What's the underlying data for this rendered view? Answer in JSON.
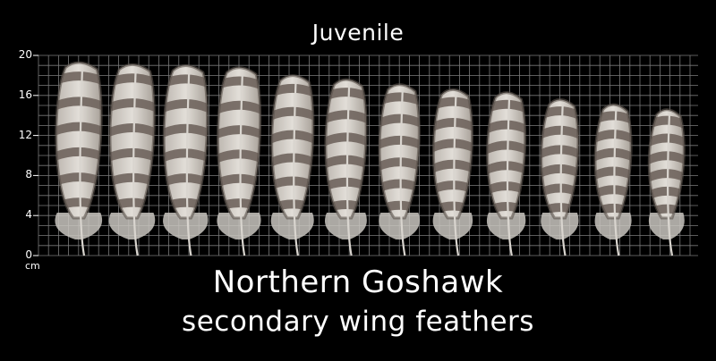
{
  "header": {
    "title": "Juvenile"
  },
  "caption": {
    "line1": "Northern Goshawk",
    "line2": "secondary wing feathers"
  },
  "scale": {
    "unit": "cm",
    "ticks": [
      "0",
      "4",
      "8",
      "12",
      "16",
      "20"
    ]
  },
  "colors": {
    "background": "#000000",
    "grid": "#7a7a7a",
    "feather_light": "#d9d5cf",
    "feather_dark": "#6f645d"
  },
  "feathers": [
    {
      "name": "feather-1",
      "length_cm": 19.5
    },
    {
      "name": "feather-2",
      "length_cm": 19.3
    },
    {
      "name": "feather-3",
      "length_cm": 19.2
    },
    {
      "name": "feather-4",
      "length_cm": 19.0
    },
    {
      "name": "feather-5",
      "length_cm": 18.2
    },
    {
      "name": "feather-6",
      "length_cm": 17.8
    },
    {
      "name": "feather-7",
      "length_cm": 17.3
    },
    {
      "name": "feather-8",
      "length_cm": 16.8
    },
    {
      "name": "feather-9",
      "length_cm": 16.5
    },
    {
      "name": "feather-10",
      "length_cm": 15.8
    },
    {
      "name": "feather-11",
      "length_cm": 15.3
    },
    {
      "name": "feather-12",
      "length_cm": 14.8
    }
  ]
}
